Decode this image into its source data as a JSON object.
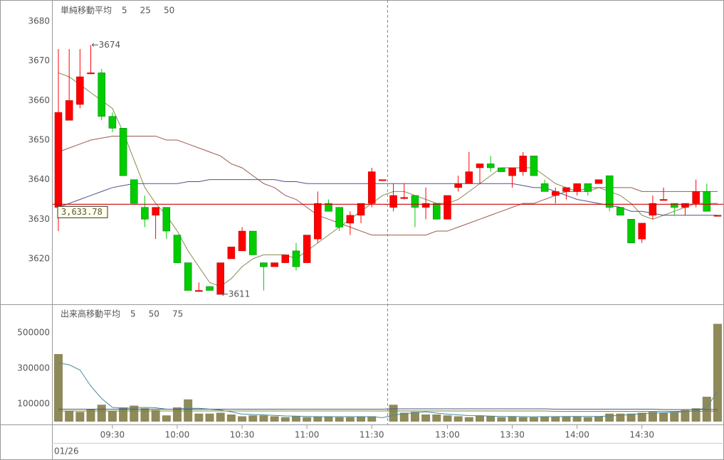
{
  "chart_data": [
    {
      "type": "candlestick",
      "title": "単純移動平均",
      "title_color": "#8a8a50",
      "up_color": "#ff0000",
      "down_color": "#00cc00",
      "open": [
        3633,
        3655,
        3659,
        3667,
        3667,
        3656,
        3653,
        3640,
        3633,
        3631,
        3633,
        3626,
        3619,
        3612,
        3613,
        3611,
        3620,
        3622,
        3627,
        3619,
        3618,
        3619,
        3622,
        3619,
        3625,
        3634,
        3633,
        3629,
        3631,
        3634,
        3640,
        3633,
        3635.5,
        3636,
        3633,
        3634,
        3630,
        3638,
        3639,
        3643,
        3644,
        3643,
        3641,
        3642,
        3646,
        3639,
        3636,
        3637,
        3637,
        3639,
        3639,
        3641,
        3633,
        3630,
        3625,
        3631,
        3635,
        3634,
        3633,
        3634,
        3637,
        3631
      ],
      "high": [
        3673,
        3673,
        3673,
        3674,
        3668,
        3657,
        3653,
        3640,
        3636,
        3633,
        3633,
        3626,
        3619,
        3614,
        3613,
        3619,
        3623,
        3628,
        3627,
        3619,
        3619,
        3621,
        3624,
        3626,
        3637,
        3635,
        3633,
        3632,
        3634,
        3643,
        3640,
        3639,
        3639,
        3636,
        3638,
        3634,
        3636,
        3641,
        3647,
        3644,
        3646,
        3643,
        3643,
        3647,
        3646,
        3640,
        3638,
        3638,
        3639,
        3639,
        3640,
        3641,
        3633,
        3630,
        3629,
        3636,
        3638,
        3634,
        3634,
        3640,
        3639,
        3631
      ],
      "low": [
        3627,
        3655,
        3658,
        3667,
        3655,
        3652,
        3641,
        3634,
        3628,
        3625,
        3625,
        3619,
        3612,
        3612,
        3612,
        3611,
        3620,
        3622,
        3621,
        3612,
        3618,
        3619,
        3617,
        3619,
        3624,
        3632,
        3627,
        3626,
        3629,
        3633,
        3640,
        3632,
        3635,
        3628,
        3630,
        3630,
        3630,
        3637,
        3639,
        3639,
        3642,
        3642,
        3638,
        3641,
        3641,
        3637,
        3634,
        3635,
        3636,
        3636,
        3639,
        3632,
        3631,
        3624,
        3624,
        3630,
        3635,
        3631,
        3631,
        3633,
        3632,
        3631
      ],
      "close": [
        3657,
        3660,
        3666,
        3667,
        3656,
        3653,
        3641,
        3634,
        3630,
        3633,
        3627,
        3619,
        3612,
        3612,
        3612,
        3619,
        3623,
        3627,
        3621,
        3618,
        3619,
        3621,
        3618,
        3626,
        3634,
        3632,
        3628,
        3631,
        3634,
        3642,
        3640,
        3636,
        3635.5,
        3633,
        3634,
        3630,
        3636,
        3639,
        3642,
        3644,
        3643,
        3642,
        3643,
        3646,
        3641,
        3637,
        3637,
        3638,
        3639,
        3637,
        3640,
        3633,
        3631,
        3624,
        3629,
        3634,
        3635,
        3633,
        3634,
        3637,
        3632,
        3631
      ],
      "series": [
        {
          "name": "5",
          "color": "#8a8a50",
          "values": [
            3667,
            3666,
            3664,
            3662,
            3660,
            3658,
            3652,
            3645,
            3638,
            3634,
            3631,
            3627,
            3622,
            3618,
            3614,
            3613,
            3615,
            3618,
            3620,
            3621,
            3621,
            3621,
            3620,
            3622,
            3624,
            3626,
            3628,
            3630,
            3632,
            3634,
            3636,
            3637,
            3637,
            3636,
            3635,
            3634,
            3634,
            3635,
            3637,
            3639,
            3641,
            3643,
            3643,
            3643,
            3643,
            3641,
            3639,
            3638,
            3637,
            3637,
            3638,
            3637,
            3636,
            3634,
            3631,
            3630,
            3631,
            3632,
            3633,
            3634,
            3634,
            3634
          ]
        },
        {
          "name": "25",
          "color": "#9a5a50",
          "values": [
            3647,
            3648,
            3649,
            3650,
            3650.5,
            3651,
            3651,
            3651,
            3651,
            3651,
            3650,
            3650,
            3649,
            3648,
            3647,
            3646,
            3644,
            3643,
            3641,
            3639,
            3638,
            3636,
            3635,
            3633,
            3631,
            3630,
            3629,
            3628,
            3627,
            3626,
            3626,
            3626,
            3626,
            3626,
            3626,
            3627,
            3627,
            3628,
            3629,
            3630,
            3631,
            3632,
            3633,
            3634,
            3634,
            3635,
            3636,
            3637,
            3637,
            3638,
            3638,
            3638,
            3638,
            3638,
            3637,
            3637,
            3637,
            3637,
            3637,
            3637,
            3637,
            3637
          ]
        },
        {
          "name": "50",
          "color": "#50508a",
          "values": [
            3633,
            3634,
            3635,
            3636,
            3637,
            3638,
            3638.5,
            3639,
            3639,
            3639,
            3639,
            3639,
            3639.5,
            3639.5,
            3640,
            3640,
            3640,
            3640,
            3640,
            3640,
            3640,
            3639.5,
            3639.5,
            3639,
            3639,
            3639,
            3639,
            3639,
            3639,
            3639,
            3639,
            3639,
            3639,
            3639,
            3639,
            3639,
            3639,
            3639,
            3639,
            3639,
            3639,
            3639,
            3639,
            3638.5,
            3638,
            3638,
            3637,
            3636,
            3635,
            3634.5,
            3634,
            3633.5,
            3633,
            3632,
            3632,
            3631.5,
            3631,
            3631,
            3631,
            3631,
            3631,
            3631
          ]
        }
      ],
      "annotations": [
        {
          "label": "←3674",
          "value": 3674,
          "color": "#ff0000"
        },
        {
          "label": "←3611",
          "value": 3611,
          "color": "#00aa00"
        }
      ],
      "last_price": {
        "value": 3633.78,
        "label": "3,633.78",
        "color": "#cc0000"
      },
      "ylim": [
        3608.5,
        3685.4
      ],
      "yticks": [
        3620,
        3630,
        3640,
        3650,
        3660,
        3670,
        3680
      ]
    },
    {
      "type": "bar",
      "title": "出来高移動平均",
      "title_color": "#4a8a9a",
      "color": "#8f8a5a",
      "categories": [
        null,
        null,
        null,
        null,
        null,
        "09:30",
        null,
        null,
        null,
        null,
        null,
        "10:00",
        null,
        null,
        null,
        null,
        null,
        "10:30",
        null,
        null,
        null,
        null,
        null,
        "11:00",
        null,
        null,
        null,
        null,
        null,
        "11:30",
        null,
        null,
        null,
        null,
        null,
        null,
        "13:00",
        null,
        null,
        null,
        null,
        null,
        "13:30",
        null,
        null,
        null,
        null,
        null,
        "14:00",
        null,
        null,
        null,
        null,
        null,
        "14:30",
        null,
        null,
        null,
        null,
        null,
        null,
        null
      ],
      "values": [
        380000,
        60000,
        55000,
        70000,
        95000,
        60000,
        80000,
        90000,
        75000,
        65000,
        35000,
        80000,
        125000,
        45000,
        45000,
        50000,
        40000,
        30000,
        35000,
        35000,
        30000,
        25000,
        30000,
        25000,
        30000,
        30000,
        25000,
        25000,
        30000,
        30000,
        0,
        95000,
        50000,
        55000,
        40000,
        40000,
        35000,
        30000,
        25000,
        35000,
        30000,
        25000,
        30000,
        25000,
        25000,
        30000,
        30000,
        30000,
        30000,
        25000,
        30000,
        45000,
        45000,
        45000,
        50000,
        55000,
        50000,
        55000,
        65000,
        75000,
        140000,
        550000
      ],
      "series": [
        {
          "name": "5",
          "color": "#4a8a9a",
          "values": [
            330000,
            320000,
            290000,
            200000,
            130000,
            80000,
            75000,
            78000,
            80000,
            78000,
            70000,
            70000,
            75000,
            75000,
            70000,
            65000,
            55000,
            42000,
            40000,
            38000,
            35000,
            32000,
            31000,
            29000,
            28000,
            28000,
            28000,
            28000,
            28000,
            28000,
            22000,
            36000,
            45000,
            50000,
            55000,
            48000,
            42000,
            38000,
            34000,
            33000,
            31000,
            29000,
            29000,
            28000,
            27000,
            28000,
            28000,
            29000,
            29000,
            29000,
            29000,
            32000,
            35000,
            40000,
            45000,
            48000,
            50000,
            52000,
            56000,
            62000,
            80000,
            170000
          ]
        },
        {
          "name": "50",
          "color": "#50508a",
          "values": [
            70000,
            70000,
            70000,
            70000,
            70000,
            70000,
            70000,
            70000,
            70000,
            70000,
            70000,
            70000,
            70000,
            70000,
            70000,
            70000,
            70000,
            70000,
            70000,
            70000,
            70000,
            70000,
            70000,
            70000,
            70000,
            70000,
            70000,
            70000,
            70000,
            70000,
            70000,
            72000,
            72000,
            72000,
            72000,
            72000,
            72000,
            72000,
            72000,
            72000,
            72000,
            72000,
            72000,
            72000,
            72000,
            72000,
            70000,
            70000,
            70000,
            70000,
            70000,
            70000,
            70000,
            70000,
            70000,
            70000,
            68000,
            68000,
            68000,
            68000,
            68000,
            68000
          ]
        },
        {
          "name": "75",
          "color": "#6a8a40",
          "values": [
            60000,
            60000,
            60000,
            60000,
            60000,
            60000,
            60000,
            60000,
            60000,
            60000,
            60000,
            60000,
            60000,
            60000,
            60000,
            60000,
            60000,
            60000,
            60000,
            60000,
            60000,
            60000,
            60000,
            60000,
            60000,
            60000,
            60000,
            60000,
            60000,
            60000,
            60000,
            60000,
            60000,
            60000,
            60000,
            60000,
            60000,
            60000,
            60000,
            60000,
            60000,
            60000,
            60000,
            60000,
            60000,
            60000,
            58000,
            58000,
            58000,
            58000,
            58000,
            58000,
            58000,
            58000,
            58000,
            58000,
            58000,
            58000,
            58000,
            58000,
            58000,
            58000
          ]
        }
      ],
      "xlabel": "01/26",
      "ylim": [
        -8000,
        652000
      ],
      "yticks": [
        100000,
        300000,
        500000
      ]
    }
  ]
}
